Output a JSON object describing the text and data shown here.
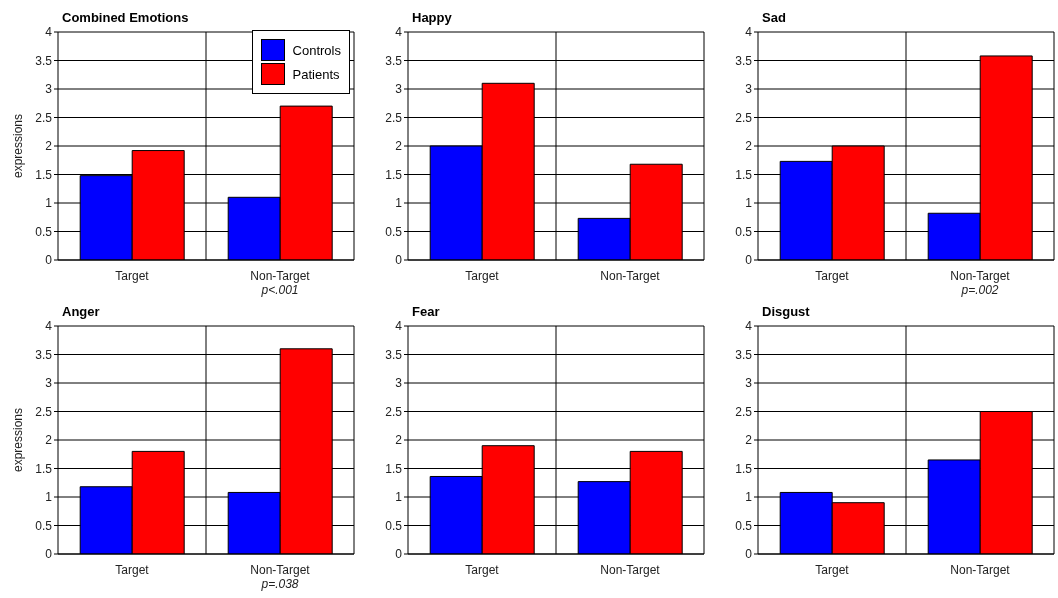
{
  "chart_data": [
    {
      "type": "bar",
      "title": "Combined Emotions",
      "ylabel": "expressions",
      "categories": [
        "Target",
        "Non-Target"
      ],
      "series": [
        {
          "name": "Controls",
          "color": "#0000ff",
          "values": [
            1.48,
            1.1
          ]
        },
        {
          "name": "Patients",
          "color": "#ff0000",
          "values": [
            1.92,
            2.7
          ]
        }
      ],
      "ylim": [
        0,
        4
      ],
      "yticks": [
        0,
        0.5,
        1,
        1.5,
        2,
        2.5,
        3,
        3.5,
        4
      ],
      "grid": true,
      "legend": "top right",
      "annotations": [
        "p<.001"
      ]
    },
    {
      "type": "bar",
      "title": "Happy",
      "categories": [
        "Target",
        "Non-Target"
      ],
      "series": [
        {
          "color": "#0000ff",
          "values": [
            2.0,
            0.73
          ]
        },
        {
          "color": "#ff0000",
          "values": [
            3.1,
            1.68
          ]
        }
      ],
      "ylim": [
        0,
        4
      ],
      "yticks": [
        0,
        0.5,
        1,
        1.5,
        2,
        2.5,
        3,
        3.5,
        4
      ],
      "grid": true
    },
    {
      "type": "bar",
      "title": "Sad",
      "categories": [
        "Target",
        "Non-Target"
      ],
      "series": [
        {
          "color": "#0000ff",
          "values": [
            1.73,
            0.82
          ]
        },
        {
          "color": "#ff0000",
          "values": [
            2.0,
            3.58
          ]
        }
      ],
      "ylim": [
        0,
        4
      ],
      "yticks": [
        0,
        0.5,
        1,
        1.5,
        2,
        2.5,
        3,
        3.5,
        4
      ],
      "grid": true,
      "annotations": [
        "p=.002"
      ]
    },
    {
      "type": "bar",
      "title": "Anger",
      "ylabel": "expressions",
      "categories": [
        "Target",
        "Non-Target"
      ],
      "series": [
        {
          "color": "#0000ff",
          "values": [
            1.18,
            1.08
          ]
        },
        {
          "color": "#ff0000",
          "values": [
            1.8,
            3.6
          ]
        }
      ],
      "ylim": [
        0,
        4
      ],
      "yticks": [
        0,
        0.5,
        1,
        1.5,
        2,
        2.5,
        3,
        3.5,
        4
      ],
      "grid": true,
      "annotations": [
        "p=.038"
      ]
    },
    {
      "type": "bar",
      "title": "Fear",
      "categories": [
        "Target",
        "Non-Target"
      ],
      "series": [
        {
          "color": "#0000ff",
          "values": [
            1.36,
            1.27
          ]
        },
        {
          "color": "#ff0000",
          "values": [
            1.9,
            1.8
          ]
        }
      ],
      "ylim": [
        0,
        4
      ],
      "yticks": [
        0,
        0.5,
        1,
        1.5,
        2,
        2.5,
        3,
        3.5,
        4
      ],
      "grid": true
    },
    {
      "type": "bar",
      "title": "Disgust",
      "categories": [
        "Target",
        "Non-Target"
      ],
      "series": [
        {
          "color": "#0000ff",
          "values": [
            1.08,
            1.65
          ]
        },
        {
          "color": "#ff0000",
          "values": [
            0.9,
            2.5
          ]
        }
      ],
      "ylim": [
        0,
        4
      ],
      "yticks": [
        0,
        0.5,
        1,
        1.5,
        2,
        2.5,
        3,
        3.5,
        4
      ],
      "grid": true
    }
  ]
}
